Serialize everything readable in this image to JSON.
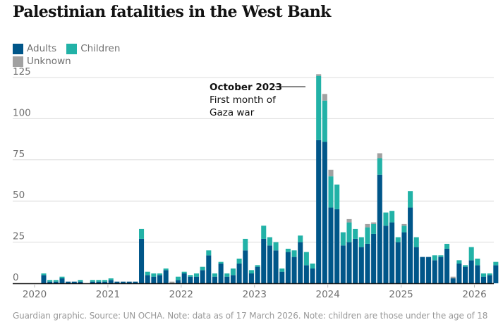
{
  "chart_data": {
    "type": "bar",
    "stacked": true,
    "title": "Palestinian fatalities in the West Bank",
    "xlabel": "",
    "ylabel": "",
    "ylim": [
      0,
      125
    ],
    "yticks": [
      0,
      25,
      50,
      75,
      100,
      125
    ],
    "xticks": [
      "2020",
      "2021",
      "2022",
      "2023",
      "2024",
      "2025",
      "2026"
    ],
    "grid": true,
    "legend_position": "top-left",
    "start_month": "2020-01",
    "series": [
      {
        "name": "Adults",
        "color": "#005689",
        "values": [
          0,
          5,
          1,
          1,
          3,
          1,
          1,
          1,
          0,
          1,
          1,
          1,
          2,
          1,
          1,
          1,
          1,
          27,
          5,
          4,
          5,
          8,
          0,
          2,
          6,
          4,
          4,
          8,
          17,
          4,
          12,
          4,
          5,
          12,
          20,
          6,
          10,
          27,
          23,
          20,
          7,
          19,
          16,
          25,
          11,
          9,
          87,
          86,
          46,
          45,
          23,
          25,
          27,
          22,
          24,
          30,
          66,
          35,
          37,
          25,
          31,
          46,
          22,
          16,
          16,
          14,
          16,
          21,
          3,
          12,
          10,
          14,
          11,
          4,
          5,
          11
        ],
        "note": "Adults values per month from Jan 2020 to Mar 2026"
      },
      {
        "name": "Children",
        "color": "#22b2a7",
        "values": [
          0,
          1,
          1,
          1,
          1,
          0,
          0,
          1,
          0,
          1,
          1,
          1,
          1,
          0,
          0,
          0,
          0,
          6,
          2,
          2,
          1,
          1,
          0,
          2,
          1,
          1,
          2,
          2,
          3,
          2,
          1,
          2,
          4,
          3,
          7,
          2,
          1,
          8,
          5,
          5,
          2,
          2,
          4,
          4,
          8,
          3,
          39,
          25,
          19,
          15,
          8,
          12,
          6,
          6,
          10,
          6,
          10,
          8,
          7,
          3,
          4,
          10,
          6,
          0,
          0,
          3,
          1,
          3,
          0,
          2,
          1,
          8,
          4,
          2,
          1,
          2
        ]
      },
      {
        "name": "Unknown",
        "color": "#a1a1a1",
        "values": [
          0,
          0,
          0,
          0,
          0,
          0,
          0,
          0,
          0,
          0,
          0,
          0,
          0,
          0,
          0,
          0,
          0,
          0,
          0,
          0,
          0,
          0,
          1,
          0,
          0,
          0,
          0,
          0,
          0,
          0,
          0,
          0,
          0,
          0,
          0,
          0,
          0,
          0,
          0,
          0,
          0,
          0,
          0,
          0,
          0,
          0,
          1,
          4,
          4,
          0,
          0,
          2,
          0,
          0,
          2,
          1,
          3,
          0,
          0,
          0,
          1,
          0,
          0,
          0,
          0,
          0,
          0,
          0,
          1,
          0,
          0,
          0,
          0,
          0,
          0,
          0
        ]
      }
    ],
    "annotation": {
      "month": "October 2023",
      "title": "October 2023",
      "text_lines": [
        "First month of",
        "Gaza war"
      ]
    }
  },
  "legend": {
    "items": [
      {
        "label": "Adults",
        "color": "#005689"
      },
      {
        "label": "Children",
        "color": "#22b2a7"
      },
      {
        "label": "Unknown",
        "color": "#a1a1a1"
      }
    ]
  },
  "footer": "Guardian graphic. Source: UN OCHA. Note: data as of 17 March 2026. Note: children are those under the age of 18"
}
